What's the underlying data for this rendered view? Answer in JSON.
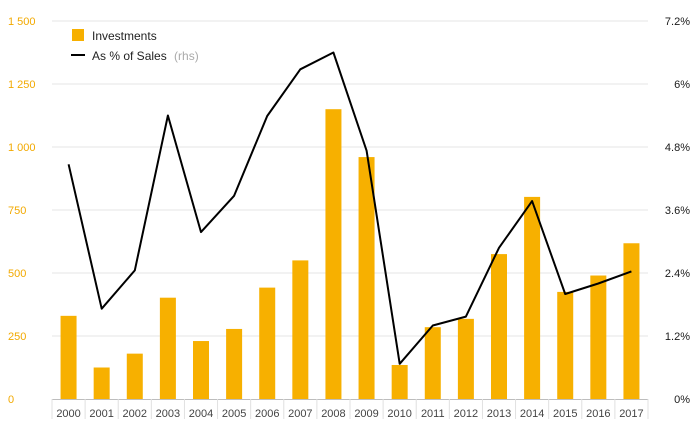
{
  "chart_data": {
    "type": "bar+line",
    "categories": [
      "2000",
      "2001",
      "2002",
      "2003",
      "2004",
      "2005",
      "2006",
      "2007",
      "2008",
      "2009",
      "2010",
      "2011",
      "2012",
      "2013",
      "2014",
      "2015",
      "2016",
      "2017"
    ],
    "series": [
      {
        "name": "Investments",
        "type": "bar",
        "axis": "left",
        "color": "#f7b000",
        "values": [
          330,
          125,
          180,
          402,
          230,
          278,
          442,
          550,
          1150,
          960,
          135,
          285,
          318,
          575,
          802,
          425,
          490,
          618
        ]
      },
      {
        "name": "As % of Sales",
        "name_suffix": "(rhs)",
        "type": "line",
        "axis": "right",
        "color": "#000000",
        "values": [
          4.47,
          1.72,
          2.45,
          5.4,
          3.18,
          3.87,
          5.39,
          6.28,
          6.6,
          4.73,
          0.67,
          1.4,
          1.57,
          2.88,
          3.77,
          2.0,
          2.2,
          2.43
        ]
      }
    ],
    "y_left": {
      "min": 0,
      "max": 1500,
      "ticks": [
        0,
        250,
        500,
        750,
        1000,
        1250,
        1500
      ],
      "tick_labels": [
        "0",
        "250",
        "500",
        "750",
        "1 000",
        "1 250",
        "1 500"
      ]
    },
    "y_right": {
      "min": 0,
      "max": 7.2,
      "ticks": [
        0,
        1.2,
        2.4,
        3.6,
        4.8,
        6.0,
        7.2
      ],
      "tick_labels": [
        "0%",
        "1.2%",
        "2.4%",
        "3.6%",
        "4.8%",
        "6%",
        "7.2%"
      ]
    },
    "legend": {
      "position": "top-left",
      "entries": [
        "Investments",
        "As % of Sales"
      ],
      "suffix": "(rhs)"
    },
    "grid": true
  }
}
